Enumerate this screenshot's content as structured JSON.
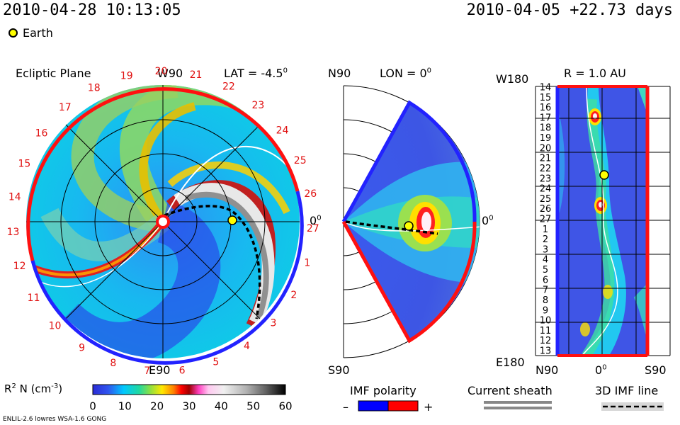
{
  "header": {
    "datetime": "2010-04-28 10:13:05",
    "reference": "2010-04-05 +22.73 days",
    "earth_legend": "Earth"
  },
  "panels": {
    "ecliptic": {
      "title": "Ecliptic Plane",
      "top_label": "W90",
      "bottom_label": "E90",
      "right_label": "0",
      "right_label_sup": "0",
      "lat_label": "LAT = -4.5",
      "lat_sup": "0",
      "carrington_labels": [
        "19",
        "20",
        "21",
        "22",
        "23",
        "24",
        "25",
        "26",
        "27",
        "1",
        "2",
        "3",
        "4",
        "5",
        "6",
        "7",
        "8",
        "9",
        "10",
        "11",
        "12",
        "13",
        "14",
        "15",
        "16",
        "17",
        "18"
      ]
    },
    "meridional": {
      "top_label": "N90",
      "bottom_label": "S90",
      "right_label": "0",
      "right_label_sup": "0",
      "lon_label": "LON = 0",
      "lon_sup": "0"
    },
    "sphere": {
      "title": "R = 1.0 AU",
      "top_label": "W180",
      "bottom_label": "E180",
      "x_ticks": [
        "N90",
        "0",
        "S90"
      ],
      "x_mid_sup": "0",
      "y_ticks": [
        "14",
        "15",
        "16",
        "17",
        "18",
        "19",
        "20",
        "21",
        "22",
        "23",
        "24",
        "25",
        "26",
        "27",
        "1",
        "2",
        "3",
        "4",
        "5",
        "6",
        "7",
        "8",
        "9",
        "10",
        "11",
        "12",
        "13"
      ]
    }
  },
  "colorbar": {
    "label_main": "R",
    "label_sup": "2",
    "label_rest": " N (cm",
    "label_sup2": "-3",
    "label_end": ")",
    "ticks": [
      "0",
      "10",
      "20",
      "30",
      "40",
      "50",
      "60"
    ]
  },
  "legends": {
    "imf_polarity": "IMF polarity",
    "minus": "–",
    "plus": "+",
    "current_sheath": "Current sheath",
    "imf_line": "3D IMF line"
  },
  "footer": {
    "model": "ENLIL-2.6 lowres WSA-1.6 GONG"
  },
  "chart_data": {
    "type": "heatmap",
    "variable": "R² N (cm⁻³)",
    "color_range": [
      0,
      60
    ],
    "colors": {
      "ring_west": "#ff0000",
      "ring_east": "#2222ff",
      "earth_marker": "#ffff00",
      "imf_minus": "#0000ff",
      "imf_plus": "#ff0000",
      "sheath": "#888888"
    }
  }
}
